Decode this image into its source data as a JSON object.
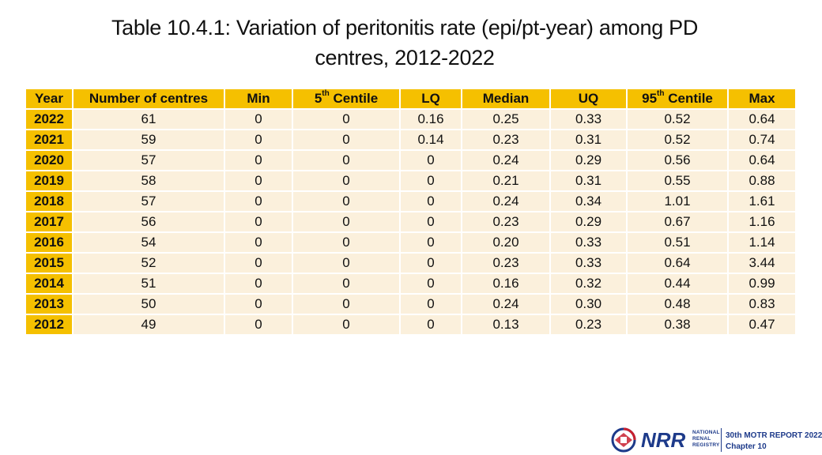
{
  "title": {
    "line1": "Table 10.4.1: Variation of peritonitis rate (epi/pt-year) among PD",
    "line2": "centres, 2012-2022"
  },
  "table": {
    "headers": {
      "year": "Year",
      "centres": "Number of centres",
      "min": "Min",
      "p5_num": "5",
      "p5_sup": "th",
      "p5_text": " Centile",
      "lq": "LQ",
      "median": "Median",
      "uq": "UQ",
      "p95_num": "95",
      "p95_sup": "th",
      "p95_text": " Centile",
      "max": "Max"
    },
    "rows": [
      [
        "2022",
        "61",
        "0",
        "0",
        "0.16",
        "0.25",
        "0.33",
        "0.52",
        "0.64"
      ],
      [
        "2021",
        "59",
        "0",
        "0",
        "0.14",
        "0.23",
        "0.31",
        "0.52",
        "0.74"
      ],
      [
        "2020",
        "57",
        "0",
        "0",
        "0",
        "0.24",
        "0.29",
        "0.56",
        "0.64"
      ],
      [
        "2019",
        "58",
        "0",
        "0",
        "0",
        "0.21",
        "0.31",
        "0.55",
        "0.88"
      ],
      [
        "2018",
        "57",
        "0",
        "0",
        "0",
        "0.24",
        "0.34",
        "1.01",
        "1.61"
      ],
      [
        "2017",
        "56",
        "0",
        "0",
        "0",
        "0.23",
        "0.29",
        "0.67",
        "1.16"
      ],
      [
        "2016",
        "54",
        "0",
        "0",
        "0",
        "0.20",
        "0.33",
        "0.51",
        "1.14"
      ],
      [
        "2015",
        "52",
        "0",
        "0",
        "0",
        "0.23",
        "0.33",
        "0.64",
        "3.44"
      ],
      [
        "2014",
        "51",
        "0",
        "0",
        "0",
        "0.16",
        "0.32",
        "0.44",
        "0.99"
      ],
      [
        "2013",
        "50",
        "0",
        "0",
        "0",
        "0.24",
        "0.30",
        "0.48",
        "0.83"
      ],
      [
        "2012",
        "49",
        "0",
        "0",
        "0",
        "0.13",
        "0.23",
        "0.38",
        "0.47"
      ]
    ]
  },
  "footer": {
    "logo_text": "NRR",
    "org_line1": "NATIONAL",
    "org_line2": "RENAL",
    "org_line3": "REGISTRY",
    "report_line1": "30th MOTR REPORT 2022",
    "report_line2": "Chapter 10"
  },
  "colors": {
    "header_bg": "#f5c000",
    "cell_bg": "#fbf0dc",
    "brand_blue": "#1d3a8a",
    "brand_red": "#c8202f"
  }
}
